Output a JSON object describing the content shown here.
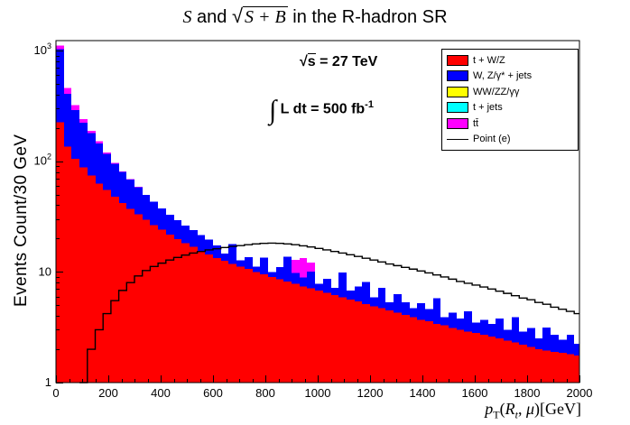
{
  "title": {
    "s1": "S",
    "mid": " and ",
    "sqrt": "√",
    "radicand": "S + B",
    "post": " in the R-hadron SR"
  },
  "axes": {
    "y_label": "Events Count/30 GeV"
  },
  "x_label": {
    "p": "p",
    "T": "T",
    "open": "(",
    "R": "R",
    "t": "t",
    "comma": ", ",
    "mu": "μ",
    "close": ")",
    "unit": "[GeV]"
  },
  "annotations": {
    "sqrt": "√",
    "s": "s",
    "energy_rest": " = 27 TeV",
    "integral": "∫",
    "lumi_text": " L dt = 500 fb",
    "lumi_exp": "-1"
  },
  "legend": {
    "position": "top-right",
    "entries": [
      {
        "label": "t + W/Z",
        "color": "#ff0000",
        "type": "fill"
      },
      {
        "label": "W, Z/γ* + jets",
        "color": "#0000ff",
        "type": "fill"
      },
      {
        "label": "WW/ZZ/γγ",
        "color": "#ffff00",
        "type": "fill"
      },
      {
        "label": "t + jets",
        "color": "#00ffff",
        "type": "fill"
      },
      {
        "label": "tt̄",
        "color": "#ff00ff",
        "type": "fill"
      },
      {
        "label": "Point (e)",
        "color": "#000000",
        "type": "line"
      }
    ]
  },
  "chart_data": {
    "type": "bar",
    "variant": "stacked-step-histogram",
    "title": "S and √(S+B) in the R-hadron SR",
    "xlabel": "pT(Rt, μ) [GeV]",
    "ylabel": "Events Count/30 GeV",
    "log_y": true,
    "xlim": [
      0,
      2000
    ],
    "ylim": [
      1,
      1230
    ],
    "bin_start": 0,
    "bin_width": 30,
    "x_ticks": [
      0,
      200,
      400,
      600,
      800,
      1000,
      1200,
      1400,
      1600,
      1800,
      2000
    ],
    "x_minor_step": 50,
    "y_ticks": [
      {
        "value": 1,
        "mantissa": "1",
        "exp": ""
      },
      {
        "value": 10,
        "mantissa": "10",
        "exp": ""
      },
      {
        "value": 100,
        "mantissa": "10",
        "exp": "2"
      },
      {
        "value": 1000,
        "mantissa": "10",
        "exp": "3"
      }
    ],
    "series": [
      {
        "name": "t + W/Z",
        "color": "#ff0000",
        "role": "stack",
        "values": [
          225,
          135,
          105,
          88,
          74,
          63,
          55,
          48,
          42,
          37,
          33,
          29.5,
          26.5,
          24,
          21.8,
          19.8,
          18.2,
          16.8,
          15.5,
          14.4,
          13.4,
          12.6,
          11.8,
          11.2,
          10.6,
          10,
          9.5,
          9,
          8.6,
          8.2,
          7.8,
          7.4,
          7.1,
          6.8,
          6.5,
          6.2,
          5.9,
          5.6,
          5.4,
          5.1,
          4.9,
          4.7,
          4.5,
          4.3,
          4.1,
          3.9,
          3.7,
          3.6,
          3.4,
          3.3,
          3.1,
          3,
          2.9,
          2.8,
          2.7,
          2.6,
          2.5,
          2.4,
          2.3,
          2.2,
          2.1,
          2,
          1.95,
          1.9,
          1.85,
          1.8,
          1.75
        ]
      },
      {
        "name": "W, Z/γ* + jets",
        "color": "#0000ff",
        "role": "stack",
        "values": [
          800,
          270,
          185,
          135,
          105,
          82,
          62,
          47,
          38,
          31,
          25,
          20,
          16.5,
          13.5,
          11,
          9.5,
          8,
          7,
          6,
          5.2,
          4,
          2,
          6,
          1.5,
          3,
          1.2,
          4,
          1,
          2.5,
          5.5,
          2,
          1.5,
          3,
          1,
          2.2,
          1,
          4,
          1.2,
          2,
          3,
          1,
          2.5,
          0.8,
          2,
          1.2,
          0.8,
          1.5,
          1,
          2.4,
          0.6,
          1.2,
          0.8,
          1.5,
          0.7,
          1,
          0.8,
          1.3,
          0.6,
          1.6,
          0.7,
          1,
          0.5,
          1.2,
          0.8,
          0.6,
          0.9,
          0.5
        ]
      },
      {
        "name": "WW/ZZ/γγ",
        "color": "#ffff00",
        "role": "stack",
        "values": [
          0,
          0,
          0,
          0,
          0,
          0,
          0,
          0,
          0,
          0,
          0,
          0,
          0,
          0,
          0,
          0,
          0,
          0,
          0,
          0,
          0,
          0,
          0,
          0,
          0,
          0,
          0,
          0,
          0,
          0,
          0,
          0,
          0,
          0,
          0,
          0,
          0,
          0,
          0,
          0,
          0,
          0,
          0,
          0,
          0,
          0,
          0,
          0,
          0,
          0,
          0,
          0,
          0,
          0,
          0,
          0,
          0,
          0,
          0,
          0,
          0,
          0,
          0,
          0,
          0,
          0,
          0
        ]
      },
      {
        "name": "t + jets",
        "color": "#00ffff",
        "role": "stack",
        "values": [
          0,
          0,
          0,
          0,
          0,
          0,
          0,
          0,
          0,
          0,
          0,
          0,
          0,
          0,
          0,
          0,
          0,
          0,
          0,
          0,
          0,
          0,
          0,
          0,
          0,
          0,
          0,
          0,
          0,
          0,
          0,
          0,
          0,
          0,
          0,
          0,
          0,
          0,
          0,
          0,
          0,
          0,
          0,
          0,
          0,
          0,
          0,
          0,
          0,
          0,
          0,
          0,
          0,
          0,
          0,
          0,
          0,
          0,
          0,
          0,
          0,
          0,
          0,
          0,
          0,
          0,
          0
        ]
      },
      {
        "name": "tt̄",
        "color": "#ff00ff",
        "role": "stack",
        "values": [
          85,
          55,
          30,
          18,
          10,
          6,
          3.5,
          2,
          1.2,
          0.8,
          0.5,
          0.3,
          0.2,
          0,
          0,
          0,
          0,
          0,
          0,
          0,
          0,
          0,
          0,
          0,
          0,
          0,
          0,
          0,
          0,
          0,
          3,
          4.5,
          2,
          0,
          0,
          0,
          0,
          0,
          0,
          0,
          0,
          0,
          0,
          0,
          0,
          0,
          0,
          0,
          0,
          0,
          0,
          0,
          0,
          0,
          0,
          0,
          0,
          0,
          0,
          0,
          0,
          0,
          0,
          0,
          0,
          0,
          0
        ]
      },
      {
        "name": "Point (e)",
        "color": "#000000",
        "role": "line",
        "values": [
          0,
          0,
          0,
          1,
          2,
          3,
          4.2,
          5.5,
          6.8,
          8,
          9.2,
          10.3,
          11.2,
          12,
          12.8,
          13.5,
          14.2,
          14.8,
          15.3,
          15.8,
          16.2,
          16.6,
          17,
          17.3,
          17.6,
          17.9,
          18.1,
          18.2,
          18.1,
          17.9,
          17.6,
          17.2,
          16.8,
          16.3,
          15.8,
          15.3,
          14.8,
          14.3,
          13.8,
          13.3,
          12.8,
          12.3,
          11.8,
          11.4,
          11,
          10.6,
          10.2,
          9.8,
          9.4,
          9,
          8.6,
          8.2,
          7.9,
          7.6,
          7.3,
          7,
          6.7,
          6.4,
          6.1,
          5.8,
          5.6,
          5.3,
          5.1,
          4.8,
          4.6,
          4.4,
          4.2
        ]
      }
    ]
  }
}
